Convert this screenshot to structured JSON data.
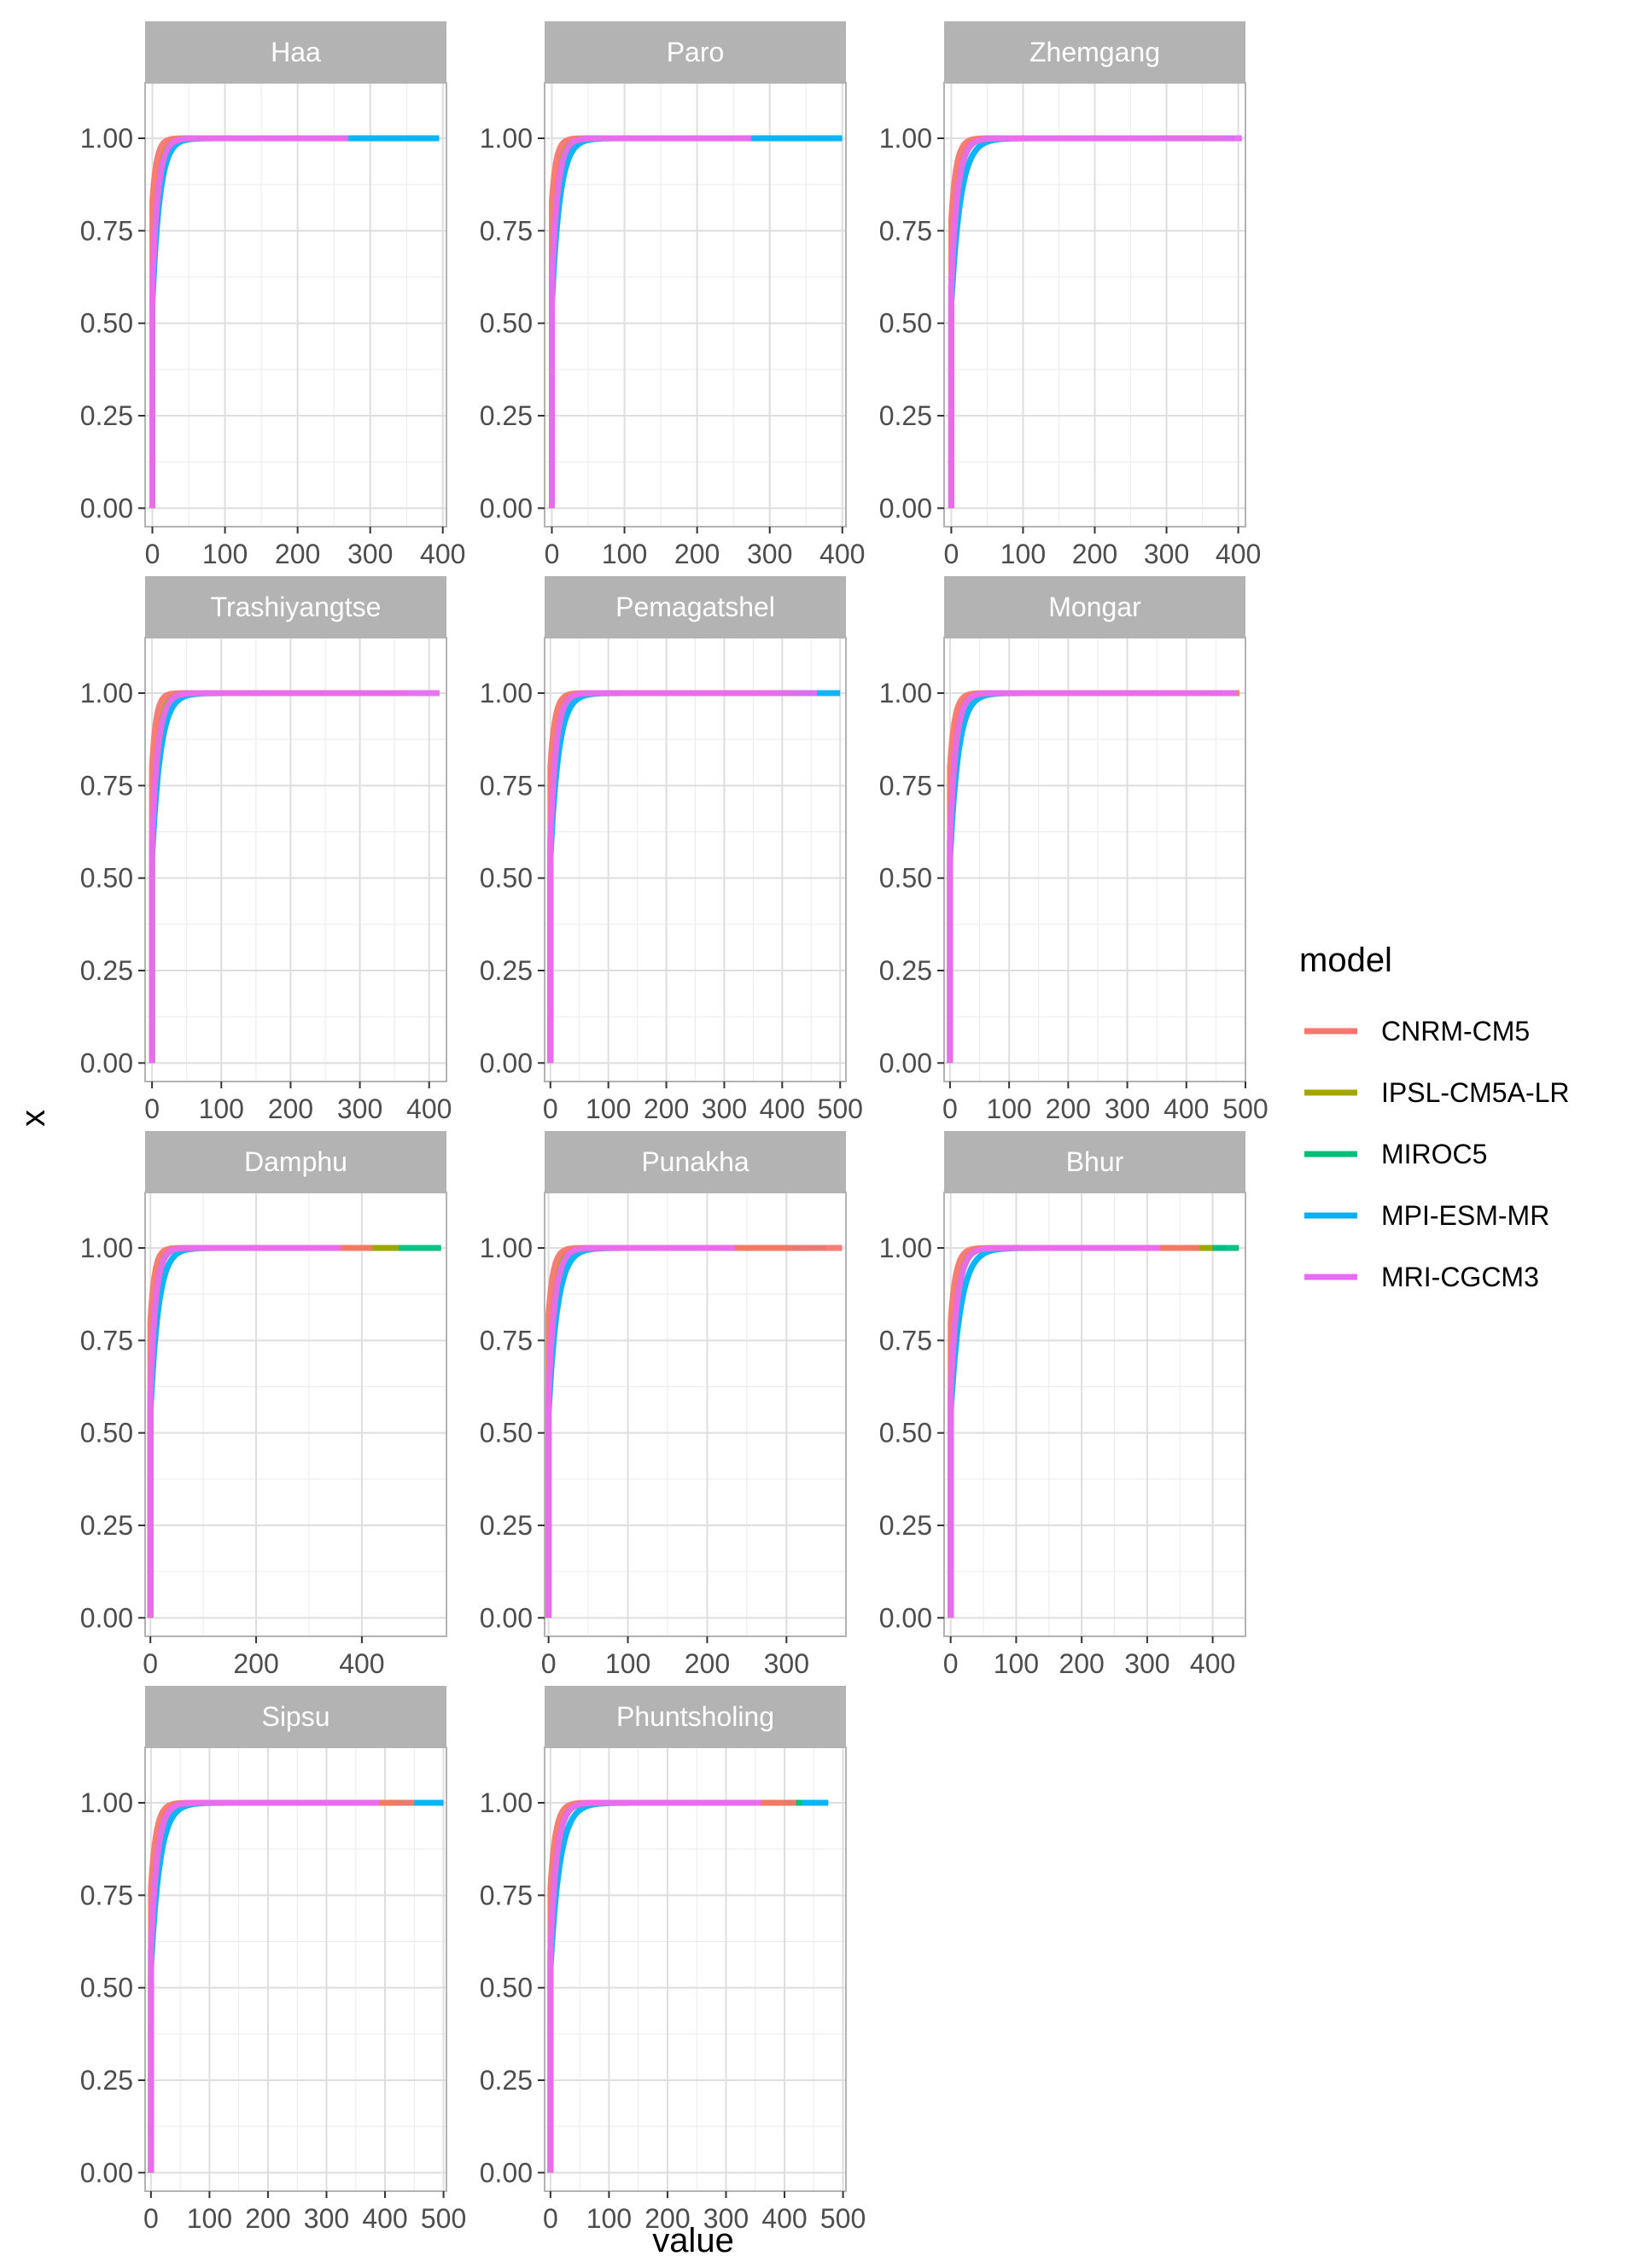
{
  "chart_data": {
    "type": "line",
    "subtype": "ecdf-facets",
    "xlabel": "value",
    "ylabel": "x",
    "ylim": [
      0,
      1
    ],
    "y_ticks": [
      "0.00",
      "0.25",
      "0.50",
      "0.75",
      "1.00"
    ],
    "grid": true,
    "legend": {
      "title": "model",
      "position": "right",
      "entries": [
        {
          "name": "CNRM-CM5",
          "color": "#F8766D"
        },
        {
          "name": "IPSL-CM5A-LR",
          "color": "#A3A500"
        },
        {
          "name": "MIROC5",
          "color": "#00BF7D"
        },
        {
          "name": "MPI-ESM-MR",
          "color": "#00B0F6"
        },
        {
          "name": "MRI-CGCM3",
          "color": "#E76BF3"
        }
      ]
    },
    "panels": [
      {
        "title": "Haa",
        "xlim": [
          -10,
          405
        ],
        "x_ticks": [
          0,
          100,
          200,
          300,
          400
        ],
        "x_tick_labels": [
          "0",
          "100",
          "200",
          "300",
          "400"
        ],
        "series": [
          {
            "name": "CNRM-CM5",
            "max": 265,
            "start": 0.83,
            "scale": 6
          },
          {
            "name": "IPSL-CM5A-LR",
            "max": 230,
            "start": 0.6,
            "scale": 7
          },
          {
            "name": "MIROC5",
            "max": 260,
            "start": 0.6,
            "scale": 8
          },
          {
            "name": "MPI-ESM-MR",
            "max": 395,
            "start": 0.55,
            "scale": 10
          },
          {
            "name": "MRI-CGCM3",
            "max": 270,
            "start": 0.6,
            "scale": 8
          }
        ]
      },
      {
        "title": "Paro",
        "xlim": [
          -10,
          405
        ],
        "x_ticks": [
          0,
          100,
          200,
          300,
          400
        ],
        "x_tick_labels": [
          "0",
          "100",
          "200",
          "300",
          "400"
        ],
        "series": [
          {
            "name": "CNRM-CM5",
            "max": 270,
            "start": 0.83,
            "scale": 6
          },
          {
            "name": "IPSL-CM5A-LR",
            "max": 240,
            "start": 0.6,
            "scale": 7
          },
          {
            "name": "MIROC5",
            "max": 260,
            "start": 0.6,
            "scale": 8
          },
          {
            "name": "MPI-ESM-MR",
            "max": 400,
            "start": 0.55,
            "scale": 11
          },
          {
            "name": "MRI-CGCM3",
            "max": 275,
            "start": 0.6,
            "scale": 8
          }
        ]
      },
      {
        "title": "Zhemgang",
        "xlim": [
          -10,
          410
        ],
        "x_ticks": [
          0,
          100,
          200,
          300,
          400
        ],
        "x_tick_labels": [
          "0",
          "100",
          "200",
          "300",
          "400"
        ],
        "series": [
          {
            "name": "CNRM-CM5",
            "max": 300,
            "start": 0.78,
            "scale": 7
          },
          {
            "name": "IPSL-CM5A-LR",
            "max": 380,
            "start": 0.6,
            "scale": 8
          },
          {
            "name": "MIROC5",
            "max": 350,
            "start": 0.6,
            "scale": 9
          },
          {
            "name": "MPI-ESM-MR",
            "max": 395,
            "start": 0.55,
            "scale": 13
          },
          {
            "name": "MRI-CGCM3",
            "max": 405,
            "start": 0.6,
            "scale": 9
          }
        ]
      },
      {
        "title": "Trashiyangtse",
        "xlim": [
          -10,
          425
        ],
        "x_ticks": [
          0,
          100,
          200,
          300,
          400
        ],
        "x_tick_labels": [
          "0",
          "100",
          "200",
          "300",
          "400"
        ],
        "series": [
          {
            "name": "CNRM-CM5",
            "max": 370,
            "start": 0.8,
            "scale": 6
          },
          {
            "name": "IPSL-CM5A-LR",
            "max": 300,
            "start": 0.6,
            "scale": 8
          },
          {
            "name": "MIROC5",
            "max": 330,
            "start": 0.6,
            "scale": 9
          },
          {
            "name": "MPI-ESM-MR",
            "max": 360,
            "start": 0.55,
            "scale": 12
          },
          {
            "name": "MRI-CGCM3",
            "max": 415,
            "start": 0.6,
            "scale": 9
          }
        ]
      },
      {
        "title": "Pemagatshel",
        "xlim": [
          -10,
          510
        ],
        "x_ticks": [
          0,
          100,
          200,
          300,
          400,
          500
        ],
        "x_tick_labels": [
          "0",
          "100",
          "200",
          "300",
          "400",
          "500"
        ],
        "series": [
          {
            "name": "CNRM-CM5",
            "max": 400,
            "start": 0.8,
            "scale": 8
          },
          {
            "name": "IPSL-CM5A-LR",
            "max": 420,
            "start": 0.6,
            "scale": 9
          },
          {
            "name": "MIROC5",
            "max": 440,
            "start": 0.6,
            "scale": 10
          },
          {
            "name": "MPI-ESM-MR",
            "max": 500,
            "start": 0.55,
            "scale": 14
          },
          {
            "name": "MRI-CGCM3",
            "max": 460,
            "start": 0.6,
            "scale": 10
          }
        ]
      },
      {
        "title": "Mongar",
        "xlim": [
          -10,
          500
        ],
        "x_ticks": [
          0,
          100,
          200,
          300,
          400,
          500
        ],
        "x_tick_labels": [
          "0",
          "100",
          "200",
          "300",
          "400",
          "500"
        ],
        "series": [
          {
            "name": "CNRM-CM5",
            "max": 490,
            "start": 0.8,
            "scale": 8
          },
          {
            "name": "IPSL-CM5A-LR",
            "max": 420,
            "start": 0.6,
            "scale": 9
          },
          {
            "name": "MIROC5",
            "max": 430,
            "start": 0.6,
            "scale": 10
          },
          {
            "name": "MPI-ESM-MR",
            "max": 470,
            "start": 0.55,
            "scale": 14
          },
          {
            "name": "MRI-CGCM3",
            "max": 485,
            "start": 0.6,
            "scale": 10
          }
        ]
      },
      {
        "title": "Damphu",
        "xlim": [
          -10,
          560
        ],
        "x_ticks": [
          0,
          200,
          400
        ],
        "x_tick_labels": [
          "0",
          "200",
          "400"
        ],
        "series": [
          {
            "name": "CNRM-CM5",
            "max": 420,
            "start": 0.8,
            "scale": 8
          },
          {
            "name": "IPSL-CM5A-LR",
            "max": 470,
            "start": 0.6,
            "scale": 9
          },
          {
            "name": "MIROC5",
            "max": 550,
            "start": 0.6,
            "scale": 10
          },
          {
            "name": "MPI-ESM-MR",
            "max": 450,
            "start": 0.55,
            "scale": 15
          },
          {
            "name": "MRI-CGCM3",
            "max": 360,
            "start": 0.6,
            "scale": 10
          }
        ]
      },
      {
        "title": "Punakha",
        "xlim": [
          -5,
          375
        ],
        "x_ticks": [
          0,
          100,
          200,
          300
        ],
        "x_tick_labels": [
          "0",
          "100",
          "200",
          "300"
        ],
        "series": [
          {
            "name": "CNRM-CM5",
            "max": 370,
            "start": 0.82,
            "scale": 6
          },
          {
            "name": "IPSL-CM5A-LR",
            "max": 300,
            "start": 0.6,
            "scale": 7
          },
          {
            "name": "MIROC5",
            "max": 320,
            "start": 0.6,
            "scale": 8
          },
          {
            "name": "MPI-ESM-MR",
            "max": 350,
            "start": 0.55,
            "scale": 11
          },
          {
            "name": "MRI-CGCM3",
            "max": 235,
            "start": 0.6,
            "scale": 8
          }
        ]
      },
      {
        "title": "Bhur",
        "xlim": [
          -10,
          450
        ],
        "x_ticks": [
          0,
          100,
          200,
          300,
          400
        ],
        "x_tick_labels": [
          "0",
          "100",
          "200",
          "300",
          "400"
        ],
        "series": [
          {
            "name": "CNRM-CM5",
            "max": 380,
            "start": 0.8,
            "scale": 8
          },
          {
            "name": "IPSL-CM5A-LR",
            "max": 400,
            "start": 0.6,
            "scale": 9
          },
          {
            "name": "MIROC5",
            "max": 440,
            "start": 0.6,
            "scale": 10
          },
          {
            "name": "MPI-ESM-MR",
            "max": 420,
            "start": 0.55,
            "scale": 15
          },
          {
            "name": "MRI-CGCM3",
            "max": 320,
            "start": 0.6,
            "scale": 10
          }
        ]
      },
      {
        "title": "Sipsu",
        "xlim": [
          -10,
          505
        ],
        "x_ticks": [
          0,
          100,
          200,
          300,
          400,
          500
        ],
        "x_tick_labels": [
          "0",
          "100",
          "200",
          "300",
          "400",
          "500"
        ],
        "series": [
          {
            "name": "CNRM-CM5",
            "max": 450,
            "start": 0.77,
            "scale": 9
          },
          {
            "name": "IPSL-CM5A-LR",
            "max": 420,
            "start": 0.6,
            "scale": 10
          },
          {
            "name": "MIROC5",
            "max": 440,
            "start": 0.6,
            "scale": 11
          },
          {
            "name": "MPI-ESM-MR",
            "max": 500,
            "start": 0.55,
            "scale": 15
          },
          {
            "name": "MRI-CGCM3",
            "max": 390,
            "start": 0.6,
            "scale": 11
          }
        ]
      },
      {
        "title": "Phuntsholing",
        "xlim": [
          -10,
          505
        ],
        "x_ticks": [
          0,
          100,
          200,
          300,
          400,
          500
        ],
        "x_tick_labels": [
          "0",
          "100",
          "200",
          "300",
          "400",
          "500"
        ],
        "series": [
          {
            "name": "CNRM-CM5",
            "max": 420,
            "start": 0.77,
            "scale": 9
          },
          {
            "name": "IPSL-CM5A-LR",
            "max": 400,
            "start": 0.6,
            "scale": 10
          },
          {
            "name": "MIROC5",
            "max": 430,
            "start": 0.6,
            "scale": 11
          },
          {
            "name": "MPI-ESM-MR",
            "max": 475,
            "start": 0.55,
            "scale": 16
          },
          {
            "name": "MRI-CGCM3",
            "max": 360,
            "start": 0.6,
            "scale": 11
          }
        ]
      }
    ]
  }
}
